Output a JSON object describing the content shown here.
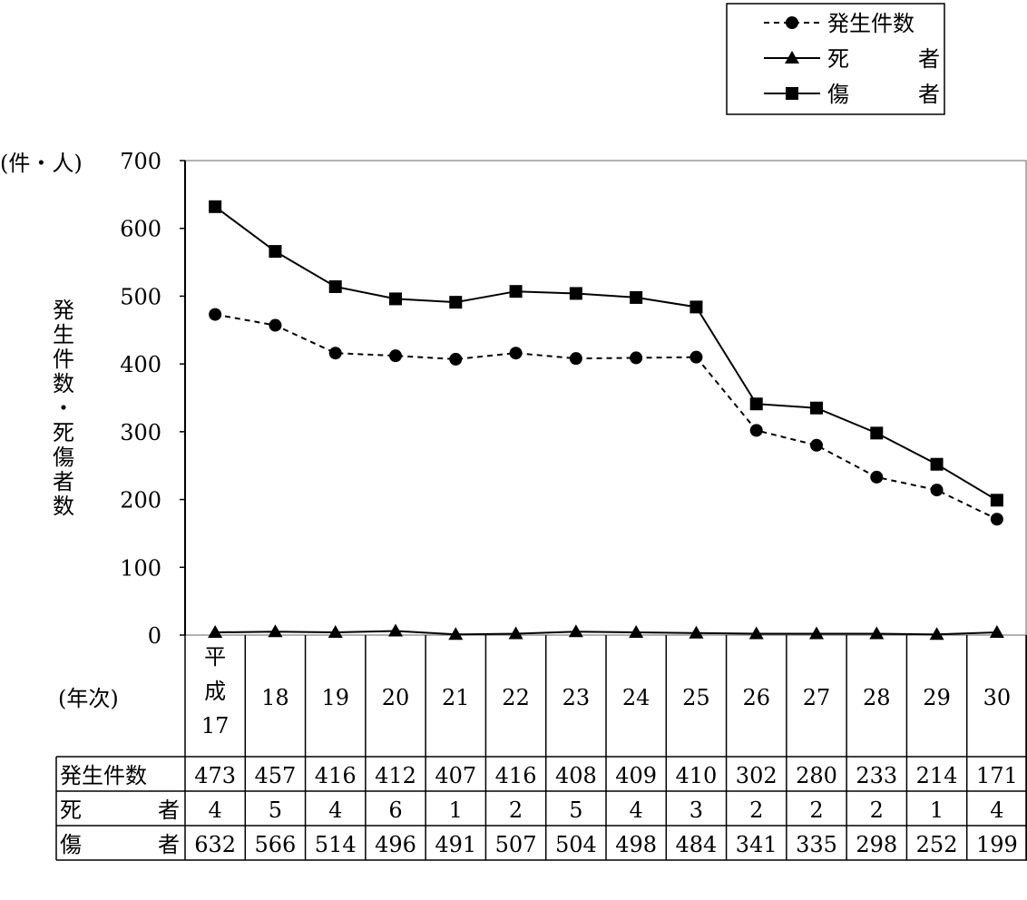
{
  "chart_data": {
    "type": "line",
    "unit_label": "(件・人)",
    "ylabel": "発生件数・死傷者数",
    "xlabel": "(年次)",
    "ylim": [
      0,
      700
    ],
    "yticks": [
      0,
      100,
      200,
      300,
      400,
      500,
      600,
      700
    ],
    "categories": [
      "平成17",
      "18",
      "19",
      "20",
      "21",
      "22",
      "23",
      "24",
      "25",
      "26",
      "27",
      "28",
      "29",
      "30"
    ],
    "legend_position": "top-right",
    "grid": false,
    "series": [
      {
        "name": "発生件数",
        "marker": "circle",
        "line": "dashed",
        "values": [
          473,
          457,
          416,
          412,
          407,
          416,
          408,
          409,
          410,
          302,
          280,
          233,
          214,
          171
        ]
      },
      {
        "name": "死　　者",
        "marker": "triangle",
        "line": "solid",
        "values": [
          4,
          5,
          4,
          6,
          1,
          2,
          5,
          4,
          3,
          2,
          2,
          2,
          1,
          4
        ]
      },
      {
        "name": "傷　　者",
        "marker": "square",
        "line": "solid",
        "values": [
          632,
          566,
          514,
          496,
          491,
          507,
          504,
          498,
          484,
          341,
          335,
          298,
          252,
          199
        ]
      }
    ],
    "table_rows": [
      {
        "label": "発生件数",
        "label_style": "compact"
      },
      {
        "label": "死　　者",
        "label_style": "spread"
      },
      {
        "label": "傷　　者",
        "label_style": "spread"
      }
    ]
  }
}
